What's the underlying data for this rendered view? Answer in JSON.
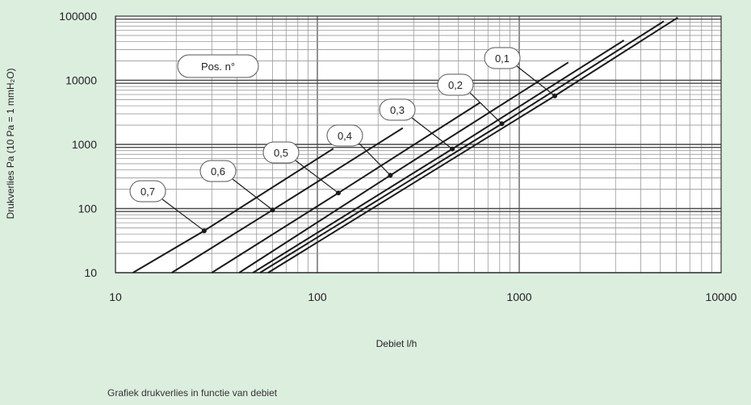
{
  "chart_data": {
    "type": "line",
    "x_scale": "log",
    "y_scale": "log",
    "xlim": [
      10,
      10000
    ],
    "ylim": [
      10,
      100000
    ],
    "xlabel": "Debiet l/h",
    "ylabel": "Drukverlies Pa (10 Pa = 1 mmH₂O)",
    "x_ticks": [
      "10",
      "100",
      "1000",
      "10000"
    ],
    "y_ticks": [
      "10",
      "100",
      "1000",
      "10000",
      "100000"
    ],
    "grid": true,
    "legend_title": "Pos. n°",
    "series": [
      {
        "name": "0,7",
        "x": [
          12.2,
          27.5,
          120
        ],
        "y": [
          10,
          45,
          860
        ]
      },
      {
        "name": "0,6",
        "x": [
          19,
          60,
          265
        ],
        "y": [
          10,
          95,
          1800
        ]
      },
      {
        "name": "0,5",
        "x": [
          30,
          127,
          640
        ],
        "y": [
          10,
          175,
          4500
        ]
      },
      {
        "name": "0,4",
        "x": [
          41,
          230,
          1750
        ],
        "y": [
          10,
          330,
          19000
        ]
      },
      {
        "name": "0,3",
        "x": [
          48,
          466,
          3300
        ],
        "y": [
          10,
          850,
          42000
        ]
      },
      {
        "name": "0,2",
        "x": [
          52,
          820,
          5200
        ],
        "y": [
          10,
          2100,
          83000
        ]
      },
      {
        "name": "0,1",
        "x": [
          57,
          1500,
          6100
        ],
        "y": [
          10,
          5700,
          95000
        ]
      }
    ],
    "highlight_points": [
      {
        "series": "0,7",
        "x": 27.5,
        "y": 45
      },
      {
        "series": "0,6",
        "x": 60,
        "y": 95
      },
      {
        "series": "0,5",
        "x": 127,
        "y": 175
      },
      {
        "series": "0,4",
        "x": 230,
        "y": 330
      },
      {
        "series": "0,3",
        "x": 466,
        "y": 850
      },
      {
        "series": "0,2",
        "x": 820,
        "y": 2100
      },
      {
        "series": "0,1",
        "x": 1500,
        "y": 5700
      }
    ],
    "caption": "Grafiek drukverlies in functie van debiet"
  },
  "colors": {
    "background": "#dcefdf",
    "plot_area": "#ffffff",
    "lines": "#1a1a1a",
    "grid_minor": "#9a9a9a",
    "grid_major": "#4a4a4a"
  }
}
